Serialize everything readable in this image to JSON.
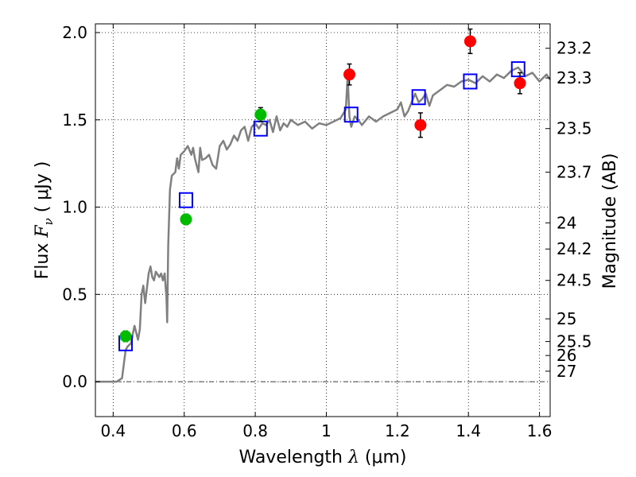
{
  "chart_data": {
    "type": "scatter",
    "xlabel": "Wavelength  λ (μm)",
    "ylabel": "Flux  F_ν  ( μJy )",
    "ylabel_parts": {
      "prefix": "Flux ",
      "symbol": "F",
      "subscript": "ν",
      "suffix": "  ( μJy )"
    },
    "xlabel_parts": {
      "prefix": "Wavelength  ",
      "symbol": "λ",
      "suffix": " (μm)"
    },
    "y2label": "Magnitude (AB)",
    "xlim": [
      0.35,
      1.63
    ],
    "ylim": [
      -0.2,
      2.05
    ],
    "grid": true,
    "xticks": [
      0.4,
      0.6,
      0.8,
      1.0,
      1.2,
      1.4,
      1.6
    ],
    "xtick_labels": [
      "0.4",
      "0.6",
      "0.8",
      "1",
      "1.2",
      "1.4",
      "1.6"
    ],
    "yticks": [
      0.0,
      0.5,
      1.0,
      1.5,
      2.0
    ],
    "ytick_labels": [
      "0.0",
      "0.5",
      "1.0",
      "1.5",
      "2.0"
    ],
    "mag_ticks": [
      {
        "label": "23.2",
        "flux": 1.91
      },
      {
        "label": "23.3",
        "flux": 1.74
      },
      {
        "label": "23.5",
        "flux": 1.45
      },
      {
        "label": "23.7",
        "flux": 1.2
      },
      {
        "label": "24",
        "flux": 0.91
      },
      {
        "label": "24.2",
        "flux": 0.76
      },
      {
        "label": "24.5",
        "flux": 0.58
      },
      {
        "label": "25",
        "flux": 0.36
      },
      {
        "label": "25.5",
        "flux": 0.23
      },
      {
        "label": "26",
        "flux": 0.15
      },
      {
        "label": "27",
        "flux": 0.06
      }
    ],
    "series": [
      {
        "name": "Model spectrum",
        "kind": "line",
        "color": "#808080",
        "x": [
          0.35,
          0.41,
          0.425,
          0.435,
          0.44,
          0.45,
          0.455,
          0.46,
          0.465,
          0.47,
          0.475,
          0.48,
          0.485,
          0.49,
          0.5,
          0.505,
          0.51,
          0.515,
          0.52,
          0.53,
          0.535,
          0.54,
          0.545,
          0.55,
          0.552,
          0.555,
          0.56,
          0.565,
          0.575,
          0.58,
          0.585,
          0.59,
          0.6,
          0.61,
          0.62,
          0.625,
          0.63,
          0.64,
          0.645,
          0.65,
          0.66,
          0.67,
          0.68,
          0.69,
          0.7,
          0.71,
          0.72,
          0.73,
          0.74,
          0.75,
          0.76,
          0.77,
          0.78,
          0.79,
          0.8,
          0.81,
          0.82,
          0.83,
          0.84,
          0.85,
          0.86,
          0.87,
          0.88,
          0.89,
          0.9,
          0.92,
          0.94,
          0.96,
          0.98,
          1.0,
          1.02,
          1.04,
          1.055,
          1.06,
          1.065,
          1.07,
          1.08,
          1.09,
          1.1,
          1.12,
          1.14,
          1.16,
          1.18,
          1.2,
          1.21,
          1.22,
          1.23,
          1.24,
          1.25,
          1.26,
          1.27,
          1.28,
          1.29,
          1.3,
          1.32,
          1.34,
          1.36,
          1.38,
          1.4,
          1.42,
          1.44,
          1.46,
          1.48,
          1.5,
          1.52,
          1.54,
          1.56,
          1.58,
          1.6,
          1.62,
          1.63
        ],
        "y": [
          0.0,
          0.0,
          0.02,
          0.18,
          0.2,
          0.22,
          0.27,
          0.32,
          0.28,
          0.24,
          0.3,
          0.5,
          0.55,
          0.45,
          0.62,
          0.66,
          0.6,
          0.58,
          0.63,
          0.6,
          0.62,
          0.58,
          0.62,
          0.48,
          0.34,
          0.78,
          1.1,
          1.18,
          1.2,
          1.28,
          1.22,
          1.3,
          1.32,
          1.35,
          1.3,
          1.34,
          1.28,
          1.2,
          1.34,
          1.27,
          1.28,
          1.3,
          1.24,
          1.22,
          1.35,
          1.38,
          1.33,
          1.36,
          1.41,
          1.38,
          1.44,
          1.46,
          1.38,
          1.46,
          1.48,
          1.45,
          1.48,
          1.47,
          1.5,
          1.43,
          1.52,
          1.44,
          1.48,
          1.46,
          1.5,
          1.47,
          1.49,
          1.45,
          1.48,
          1.47,
          1.49,
          1.51,
          1.56,
          1.75,
          1.52,
          1.46,
          1.52,
          1.5,
          1.47,
          1.52,
          1.49,
          1.52,
          1.54,
          1.56,
          1.6,
          1.52,
          1.55,
          1.6,
          1.65,
          1.6,
          1.62,
          1.65,
          1.58,
          1.64,
          1.67,
          1.7,
          1.69,
          1.72,
          1.73,
          1.71,
          1.75,
          1.72,
          1.76,
          1.74,
          1.78,
          1.8,
          1.75,
          1.77,
          1.72,
          1.76,
          1.73
        ]
      },
      {
        "name": "Model photometry",
        "kind": "square",
        "color": "#0000ff",
        "x": [
          0.435,
          0.605,
          0.815,
          1.07,
          1.26,
          1.405,
          1.54
        ],
        "y": [
          0.22,
          1.04,
          1.45,
          1.53,
          1.63,
          1.72,
          1.79
        ]
      },
      {
        "name": "Detections (green)",
        "kind": "circle",
        "color": "#00bb00",
        "x": [
          0.435,
          0.605,
          0.815
        ],
        "y": [
          0.26,
          0.93,
          1.53
        ],
        "err": [
          0.03,
          0.03,
          0.04
        ]
      },
      {
        "name": "Detections (red)",
        "kind": "circle",
        "color": "#ff0000",
        "x": [
          1.065,
          1.265,
          1.405,
          1.545
        ],
        "y": [
          1.76,
          1.47,
          1.95,
          1.71
        ],
        "err": [
          0.06,
          0.07,
          0.07,
          0.06
        ]
      }
    ]
  }
}
